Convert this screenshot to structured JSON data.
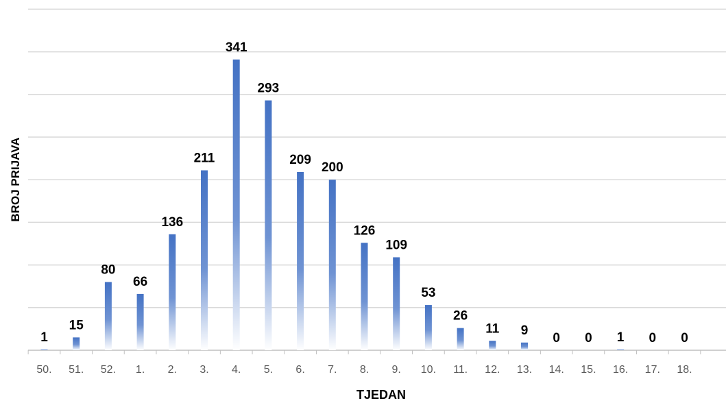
{
  "chart_data": {
    "type": "bar",
    "title": "",
    "xlabel": "TJEDAN",
    "ylabel": "BROJ PRIJAVA",
    "categories": [
      "50.",
      "51.",
      "52.",
      "1.",
      "2.",
      "3.",
      "4.",
      "5.",
      "6.",
      "7.",
      "8.",
      "9.",
      "10.",
      "11.",
      "12.",
      "13.",
      "14.",
      "15.",
      "16.",
      "17.",
      "18."
    ],
    "values": [
      1,
      15,
      80,
      66,
      136,
      211,
      341,
      293,
      209,
      200,
      126,
      109,
      53,
      26,
      11,
      9,
      0,
      0,
      1,
      0,
      0
    ],
    "ylim": [
      0,
      400
    ],
    "ytick_step": 50,
    "grid": true,
    "y_tick_labels_visible": false,
    "data_labels": true,
    "colors": {
      "bar_top": "#4472c4",
      "bar_bottom": "#ffffff",
      "grid": "#d9d9d9",
      "axis": "#bfbfbf",
      "tick_text": "#595959",
      "label_text": "#000000"
    }
  }
}
